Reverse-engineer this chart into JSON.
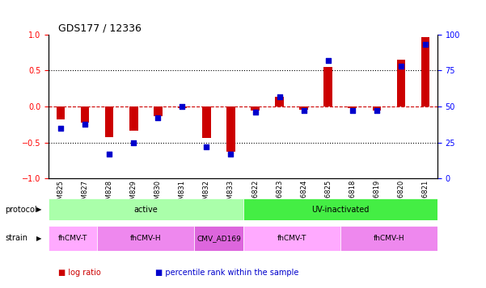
{
  "title": "GDS177 / 12336",
  "samples": [
    "GSM825",
    "GSM827",
    "GSM828",
    "GSM829",
    "GSM830",
    "GSM831",
    "GSM832",
    "GSM833",
    "GSM6822",
    "GSM6823",
    "GSM6824",
    "GSM6825",
    "GSM6818",
    "GSM6819",
    "GSM6820",
    "GSM6821"
  ],
  "log_ratio": [
    -0.18,
    -0.22,
    -0.42,
    -0.33,
    -0.13,
    -0.02,
    -0.44,
    -0.63,
    -0.05,
    0.13,
    -0.04,
    0.55,
    -0.02,
    -0.05,
    0.65,
    0.97
  ],
  "pct_rank": [
    35,
    38,
    17,
    25,
    42,
    50,
    22,
    17,
    46,
    57,
    47,
    82,
    47,
    47,
    78,
    93
  ],
  "protocol_groups": [
    {
      "label": "active",
      "start": 0,
      "end": 7,
      "color": "#aaffaa"
    },
    {
      "label": "UV-inactivated",
      "start": 8,
      "end": 15,
      "color": "#44ee44"
    }
  ],
  "strain_groups": [
    {
      "label": "fhCMV-T",
      "start": 0,
      "end": 1,
      "color": "#ffaaff"
    },
    {
      "label": "fhCMV-H",
      "start": 2,
      "end": 5,
      "color": "#ee88ee"
    },
    {
      "label": "CMV_AD169",
      "start": 6,
      "end": 7,
      "color": "#dd66dd"
    },
    {
      "label": "fhCMV-T",
      "start": 8,
      "end": 11,
      "color": "#ffaaff"
    },
    {
      "label": "fhCMV-H",
      "start": 12,
      "end": 15,
      "color": "#ee88ee"
    }
  ],
  "bar_color": "#cc0000",
  "dot_color": "#0000cc",
  "ylim": [
    -1,
    1
  ],
  "y2lim": [
    0,
    100
  ],
  "yticks": [
    -1,
    -0.5,
    0,
    0.5,
    1
  ],
  "y2ticks": [
    0,
    25,
    50,
    75,
    100
  ],
  "hline_color": "#cc0000",
  "dotted_color": "black"
}
